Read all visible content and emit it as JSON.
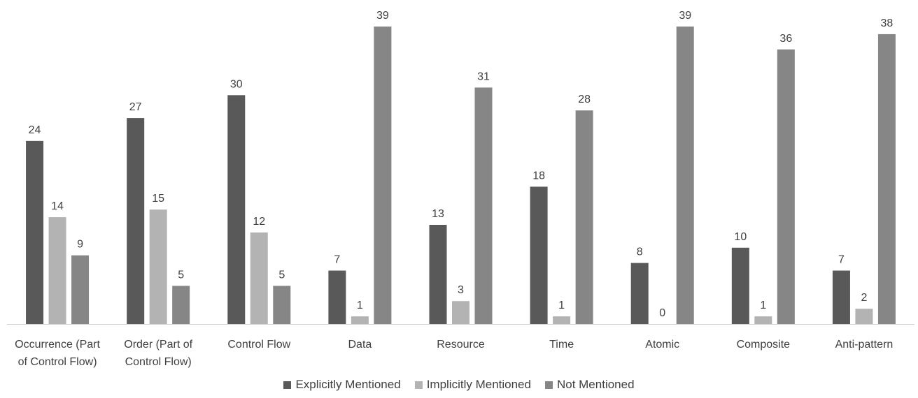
{
  "chart_data": {
    "type": "bar",
    "title": "",
    "xlabel": "",
    "ylabel": "",
    "ylim": [
      0,
      39
    ],
    "grid": false,
    "legend_position": "bottom",
    "categories": [
      [
        "Occurrence (Part",
        "of Control Flow)"
      ],
      [
        "Order (Part of",
        "Control Flow)"
      ],
      [
        "Control Flow"
      ],
      [
        "Data"
      ],
      [
        "Resource"
      ],
      [
        "Time"
      ],
      [
        "Atomic"
      ],
      [
        "Composite"
      ],
      [
        "Anti-pattern"
      ]
    ],
    "series": [
      {
        "name": "Explicitly Mentioned",
        "color": "#595959",
        "values": [
          24,
          27,
          30,
          7,
          13,
          18,
          8,
          10,
          7
        ]
      },
      {
        "name": "Implicitly Mentioned",
        "color": "#b3b3b3",
        "values": [
          14,
          15,
          12,
          1,
          3,
          1,
          0,
          1,
          2
        ]
      },
      {
        "name": "Not Mentioned",
        "color": "#868686",
        "values": [
          9,
          5,
          5,
          39,
          31,
          28,
          39,
          36,
          38
        ]
      }
    ],
    "data_labels": true
  }
}
